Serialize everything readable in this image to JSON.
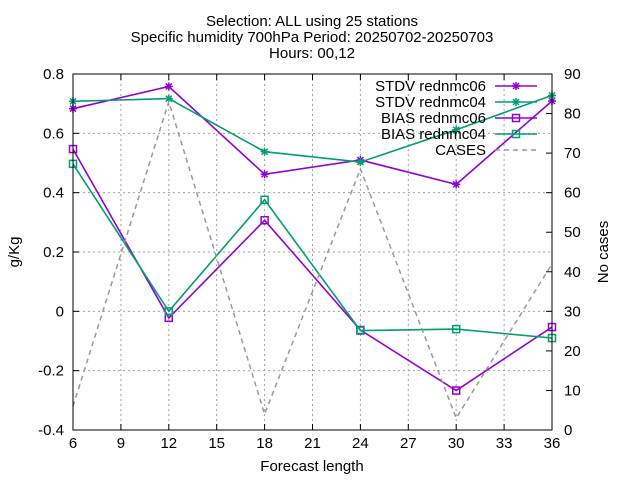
{
  "chart_data": {
    "type": "line",
    "title_lines": [
      "Selection: ALL using    25 stations",
      "Specific humidity 700hPa   Period: 20250702-20250703",
      "Hours: 00,12"
    ],
    "xlabel": "Forecast length",
    "ylabel": "g/Kg",
    "y2label": "No cases",
    "xlim": [
      6,
      36
    ],
    "ylim": [
      -0.4,
      0.8
    ],
    "y2lim": [
      0,
      90
    ],
    "xticks": [
      6,
      9,
      12,
      15,
      18,
      21,
      24,
      27,
      30,
      33,
      36
    ],
    "yticks": [
      -0.4,
      -0.2,
      0,
      0.2,
      0.4,
      0.6,
      0.8
    ],
    "yticklabels": [
      "-0.4",
      "-0.2",
      "0",
      "0.2",
      "0.4",
      "0.6",
      "0.8"
    ],
    "y2ticks": [
      0,
      10,
      20,
      30,
      40,
      50,
      60,
      70,
      80,
      90
    ],
    "grid": true,
    "legend_position": "top-right",
    "x": [
      6,
      12,
      18,
      24,
      30,
      36
    ],
    "series": [
      {
        "name": "STDV rednmc06",
        "axis": "y",
        "marker": "star",
        "dash": "solid",
        "color": "#9400d3",
        "values": [
          0.683,
          0.758,
          0.462,
          0.51,
          0.428,
          0.709
        ]
      },
      {
        "name": "STDV rednmc04",
        "axis": "y",
        "marker": "star",
        "dash": "solid",
        "color": "#009e73",
        "values": [
          0.708,
          0.717,
          0.538,
          0.503,
          0.612,
          0.728
        ]
      },
      {
        "name": "BIAS rednmc06",
        "axis": "y",
        "marker": "square",
        "dash": "solid",
        "color": "#9400d3",
        "values": [
          0.547,
          -0.022,
          0.307,
          -0.063,
          -0.267,
          -0.053
        ]
      },
      {
        "name": "BIAS rednmc04",
        "axis": "y",
        "marker": "square",
        "dash": "solid",
        "color": "#009e73",
        "values": [
          0.497,
          0.0,
          0.376,
          -0.065,
          -0.06,
          -0.09
        ]
      },
      {
        "name": "CASES",
        "axis": "y2",
        "marker": "none",
        "dash": "dashed",
        "color": "#999999",
        "values": [
          6,
          83,
          4,
          66,
          3,
          42
        ]
      }
    ]
  }
}
